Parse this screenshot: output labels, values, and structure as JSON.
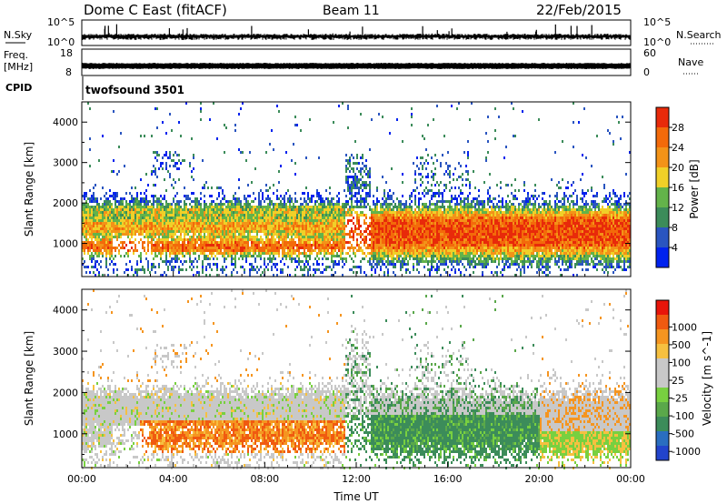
{
  "header": {
    "station": "Dome C East (fitACF)",
    "beam": "Beam 11",
    "date": "22/Feb/2015"
  },
  "panels": {
    "nsky_label": "N.Sky",
    "nsky_ticks": [
      "10^5",
      "10^0"
    ],
    "nsearch_label": "N.Search",
    "nsearch_ticks": [
      "10^5",
      "10^0"
    ],
    "freq_label": "Freq.",
    "freq_unit": "[MHz]",
    "freq_ticks": [
      "18",
      "8"
    ],
    "nave_label": "Nave",
    "nave_ticks": [
      "60",
      "0"
    ],
    "cpid_label": "CPID",
    "cpid_value": "twofsound 3501"
  },
  "colors": {
    "power": [
      "#0022ee",
      "#2a55c0",
      "#3c8c5a",
      "#63b34a",
      "#f0d028",
      "#f39318",
      "#f36a0a",
      "#e82a0a"
    ],
    "velocity": [
      "#e8150a",
      "#f05a10",
      "#f59520",
      "#f6c040",
      "#c8c8c8",
      "#c8c8c8",
      "#78d040",
      "#5aa84a",
      "#3c8c5a",
      "#2a6ec0",
      "#2244cc"
    ]
  },
  "chart_data": [
    {
      "type": "heatmap",
      "name": "power",
      "xlabel": "Time UT",
      "ylabel": "Slant Range [km]",
      "xlim": [
        "00:00",
        "24:00"
      ],
      "x_ticks": [
        "00:00",
        "04:00",
        "08:00",
        "12:00",
        "16:00",
        "20:00",
        "00:00"
      ],
      "ylim": [
        180,
        4500
      ],
      "y_ticks": [
        1000,
        2000,
        3000,
        4000
      ],
      "colorbar_label": "Power [dB]",
      "colorbar_ticks": [
        "4",
        "8",
        "12",
        "16",
        "20",
        "24",
        "28"
      ],
      "colorbar_range": [
        0,
        32
      ]
    },
    {
      "type": "heatmap",
      "name": "velocity",
      "xlabel": "Time UT",
      "ylabel": "Slant Range [km]",
      "xlim": [
        "00:00",
        "24:00"
      ],
      "x_ticks": [
        "00:00",
        "04:00",
        "08:00",
        "12:00",
        "16:00",
        "20:00",
        "00:00"
      ],
      "ylim": [
        180,
        4500
      ],
      "y_ticks": [
        1000,
        2000,
        3000,
        4000
      ],
      "colorbar_label": "Velocity [m s^-1]",
      "colorbar_ticks": [
        "1000",
        "500",
        "100",
        "25",
        "-25",
        "-100",
        "-500",
        "-1000"
      ]
    }
  ]
}
